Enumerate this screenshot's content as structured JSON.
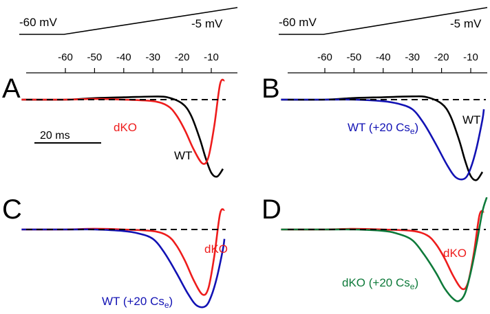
{
  "colors": {
    "wt": "#000000",
    "dko": "#ee1c1c",
    "wt_cs": "#1212b4",
    "dko_cs": "#0e7a3a",
    "baseline": "#000000"
  },
  "protocol": {
    "left_start": "-60 mV",
    "left_end": "-5 mV",
    "right_start": "-60 mV",
    "right_end": "-5 mV"
  },
  "scale_bar": {
    "label": "20 ms"
  },
  "chart_data": [
    {
      "type": "line",
      "panel": "A",
      "xaxis_ticks": [
        -60,
        -50,
        -40,
        -30,
        -20,
        -10
      ],
      "xunit": "mV",
      "baseline": "dashed",
      "series": [
        {
          "name": "WT",
          "color_key": "wt",
          "x": [
            -75,
            -60,
            -50,
            -40,
            -30,
            -25,
            -20,
            -17,
            -14,
            -12,
            -10,
            -8,
            -6
          ],
          "y": [
            0,
            0,
            0.02,
            0.03,
            0.04,
            0.03,
            -0.05,
            -0.2,
            -0.5,
            -0.75,
            -0.95,
            -1.0,
            -0.9
          ]
        },
        {
          "name": "dKO",
          "color_key": "dko",
          "x": [
            -75,
            -60,
            -50,
            -40,
            -30,
            -25,
            -22,
            -19,
            -16,
            -13,
            -11,
            -9,
            -7,
            -5.5
          ],
          "y": [
            0,
            0,
            0.01,
            0.0,
            -0.02,
            -0.08,
            -0.2,
            -0.4,
            -0.65,
            -0.83,
            -0.75,
            -0.35,
            0.2,
            0.25
          ]
        }
      ]
    },
    {
      "type": "line",
      "panel": "B",
      "xaxis_ticks": [
        -60,
        -50,
        -40,
        -30,
        -20,
        -10
      ],
      "xunit": "mV",
      "baseline": "dashed",
      "series": [
        {
          "name": "WT",
          "color_key": "wt",
          "x": [
            -75,
            -60,
            -50,
            -40,
            -30,
            -25,
            -20,
            -17,
            -14,
            -12,
            -10,
            -8,
            -6
          ],
          "y": [
            0,
            0,
            0.02,
            0.03,
            0.04,
            0.03,
            -0.05,
            -0.2,
            -0.5,
            -0.75,
            -0.95,
            -1.0,
            -0.9
          ]
        },
        {
          "name": "WT (+20 Cs",
          "subscript": "e",
          "name_suffix": ")",
          "color_key": "wt_cs",
          "x": [
            -75,
            -60,
            -50,
            -40,
            -35,
            -30,
            -26,
            -22,
            -18,
            -15,
            -12,
            -10,
            -8,
            -6,
            -5.5
          ],
          "y": [
            0,
            0,
            0.0,
            -0.02,
            -0.05,
            -0.12,
            -0.3,
            -0.55,
            -0.82,
            -0.97,
            -0.98,
            -0.85,
            -0.6,
            -0.25,
            -0.12
          ]
        }
      ]
    },
    {
      "type": "line",
      "panel": "C",
      "xaxis_ticks": [
        -60,
        -50,
        -40,
        -30,
        -20,
        -10
      ],
      "xunit": "mV",
      "baseline": "dashed",
      "series": [
        {
          "name": "dKO",
          "color_key": "dko",
          "x": [
            -75,
            -60,
            -50,
            -40,
            -30,
            -25,
            -22,
            -19,
            -16,
            -13,
            -11,
            -9,
            -7,
            -5.5
          ],
          "y": [
            0,
            0,
            0.01,
            0.0,
            -0.02,
            -0.08,
            -0.2,
            -0.4,
            -0.65,
            -0.83,
            -0.75,
            -0.35,
            0.2,
            0.25
          ]
        },
        {
          "name": "WT (+20 Cs",
          "subscript": "e",
          "name_suffix": ")",
          "color_key": "wt_cs",
          "x": [
            -75,
            -60,
            -50,
            -40,
            -35,
            -30,
            -26,
            -22,
            -18,
            -15,
            -12,
            -10,
            -8,
            -6,
            -5.5
          ],
          "y": [
            0,
            0,
            0.0,
            -0.02,
            -0.05,
            -0.12,
            -0.3,
            -0.55,
            -0.82,
            -0.97,
            -0.98,
            -0.85,
            -0.6,
            -0.25,
            -0.12
          ]
        }
      ]
    },
    {
      "type": "line",
      "panel": "D",
      "xaxis_ticks": [
        -60,
        -50,
        -40,
        -30,
        -20,
        -10
      ],
      "xunit": "mV",
      "baseline": "dashed",
      "series": [
        {
          "name": "dKO",
          "color_key": "dko",
          "x": [
            -75,
            -60,
            -50,
            -40,
            -30,
            -25,
            -22,
            -19,
            -16,
            -13,
            -11,
            -9,
            -7,
            -5.5
          ],
          "y": [
            0,
            0,
            0.01,
            0.0,
            -0.02,
            -0.08,
            -0.2,
            -0.4,
            -0.65,
            -0.83,
            -0.75,
            -0.35,
            0.2,
            0.25
          ]
        },
        {
          "name": "dKO (+20 Cs",
          "subscript": "e",
          "name_suffix": ")",
          "color_key": "dko_cs",
          "x": [
            -75,
            -60,
            -50,
            -40,
            -35,
            -30,
            -26,
            -22,
            -19,
            -16,
            -14,
            -12,
            -10,
            -8,
            -6,
            -4.5
          ],
          "y": [
            0,
            0,
            0.0,
            -0.02,
            -0.06,
            -0.15,
            -0.35,
            -0.6,
            -0.82,
            -0.97,
            -1.0,
            -0.9,
            -0.6,
            -0.2,
            0.25,
            0.45
          ]
        }
      ]
    }
  ]
}
